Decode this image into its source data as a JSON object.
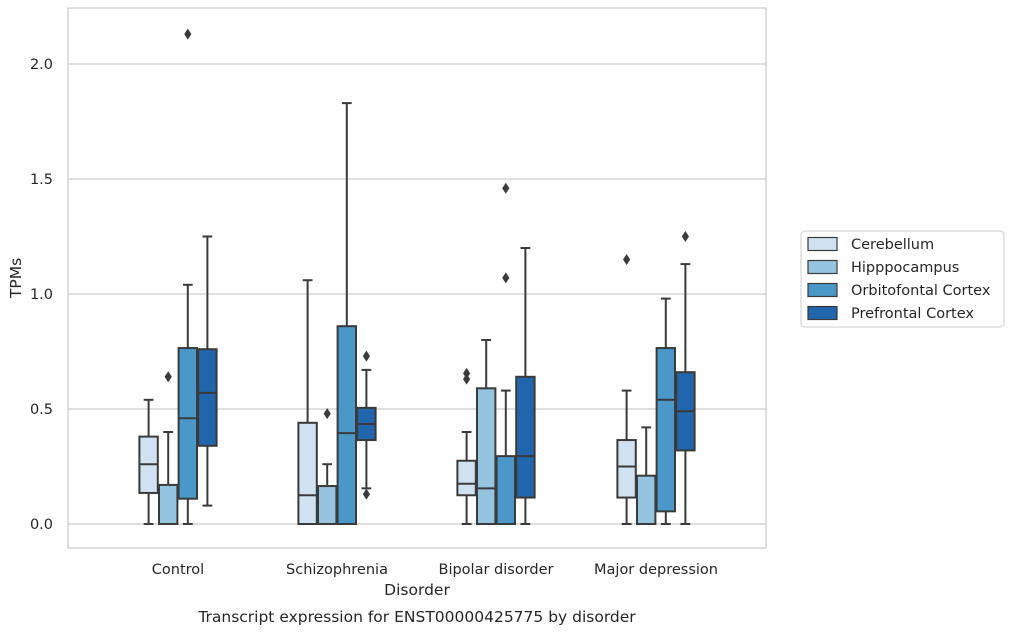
{
  "chart_data": {
    "type": "box",
    "xlabel": "Disorder",
    "ylabel": "TPMs",
    "caption": "Transcript expression for ENST00000425775 by disorder",
    "ylim": [
      -0.1,
      2.25
    ],
    "yticks": [
      "0.0",
      "0.5",
      "1.0",
      "1.5",
      "2.0"
    ],
    "grid": "horizontal",
    "legend_position": "right",
    "categories": [
      "Control",
      "Schizophrenia",
      "Bipolar disorder",
      "Major depression"
    ],
    "series": [
      {
        "name": "Cerebellum",
        "color": "#d0e1f2",
        "boxes": [
          {
            "whisker_low": 0.0,
            "q1": 0.135,
            "median": 0.26,
            "q3": 0.38,
            "whisker_high": 0.54,
            "outliers": []
          },
          {
            "whisker_low": 0.0,
            "q1": 0.0,
            "median": 0.125,
            "q3": 0.44,
            "whisker_high": 1.06,
            "outliers": []
          },
          {
            "whisker_low": 0.0,
            "q1": 0.125,
            "median": 0.175,
            "q3": 0.275,
            "whisker_high": 0.4,
            "outliers": [
              0.63,
              0.655
            ]
          },
          {
            "whisker_low": 0.0,
            "q1": 0.115,
            "median": 0.25,
            "q3": 0.365,
            "whisker_high": 0.58,
            "outliers": [
              1.15
            ]
          }
        ]
      },
      {
        "name": "Hipppocampus",
        "color": "#94c4df",
        "boxes": [
          {
            "whisker_low": 0.0,
            "q1": 0.0,
            "median": 0.0,
            "q3": 0.17,
            "whisker_high": 0.4,
            "outliers": [
              0.64
            ]
          },
          {
            "whisker_low": 0.0,
            "q1": 0.0,
            "median": 0.0,
            "q3": 0.165,
            "whisker_high": 0.26,
            "outliers": [
              0.48
            ]
          },
          {
            "whisker_low": 0.0,
            "q1": 0.0,
            "median": 0.155,
            "q3": 0.59,
            "whisker_high": 0.8,
            "outliers": []
          },
          {
            "whisker_low": 0.0,
            "q1": 0.0,
            "median": 0.0,
            "q3": 0.21,
            "whisker_high": 0.42,
            "outliers": []
          }
        ]
      },
      {
        "name": "Orbitofontal Cortex",
        "color": "#4a98c9",
        "boxes": [
          {
            "whisker_low": 0.0,
            "q1": 0.11,
            "median": 0.46,
            "q3": 0.765,
            "whisker_high": 1.04,
            "outliers": [
              2.13
            ]
          },
          {
            "whisker_low": 0.0,
            "q1": 0.0,
            "median": 0.395,
            "q3": 0.86,
            "whisker_high": 1.83,
            "outliers": []
          },
          {
            "whisker_low": 0.0,
            "q1": 0.0,
            "median": 0.0,
            "q3": 0.295,
            "whisker_high": 0.58,
            "outliers": [
              1.07,
              1.46
            ]
          },
          {
            "whisker_low": 0.0,
            "q1": 0.055,
            "median": 0.54,
            "q3": 0.765,
            "whisker_high": 0.98,
            "outliers": []
          }
        ]
      },
      {
        "name": "Prefrontal Cortex",
        "color": "#2166ac",
        "boxes": [
          {
            "whisker_low": 0.08,
            "q1": 0.34,
            "median": 0.57,
            "q3": 0.76,
            "whisker_high": 1.25,
            "outliers": []
          },
          {
            "whisker_low": 0.155,
            "q1": 0.365,
            "median": 0.435,
            "q3": 0.505,
            "whisker_high": 0.67,
            "outliers": [
              0.13,
              0.73
            ]
          },
          {
            "whisker_low": 0.0,
            "q1": 0.115,
            "median": 0.295,
            "q3": 0.64,
            "whisker_high": 1.2,
            "outliers": []
          },
          {
            "whisker_low": 0.0,
            "q1": 0.32,
            "median": 0.49,
            "q3": 0.66,
            "whisker_high": 1.13,
            "outliers": [
              1.25
            ]
          }
        ]
      }
    ]
  }
}
